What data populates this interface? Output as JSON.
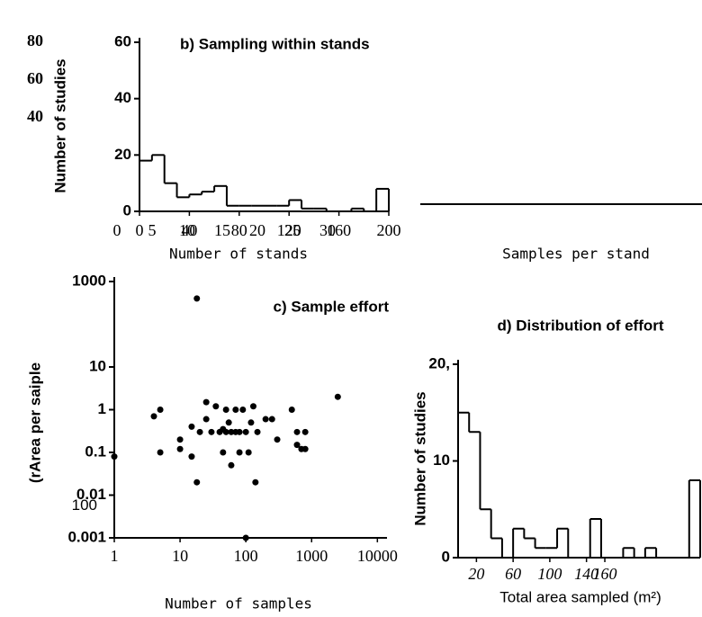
{
  "chart_data": [
    {
      "type": "histogram",
      "title": "b) Sampling within stands",
      "xlabel": "Number of stands",
      "ylabel": "Number of studies",
      "bins": [
        0,
        10,
        20,
        30,
        40,
        50,
        60,
        70,
        80,
        90,
        100,
        110,
        120,
        130,
        140,
        150,
        160,
        170,
        180,
        190,
        200
      ],
      "values": [
        18,
        20,
        10,
        5,
        6,
        7,
        9,
        2,
        2,
        2,
        2,
        2,
        4,
        1,
        1,
        0,
        0,
        1,
        0,
        8
      ],
      "xlim": [
        0,
        200
      ],
      "xticks": [
        0,
        40,
        80,
        120,
        160,
        200
      ],
      "ylim": [
        0,
        60
      ],
      "yticks": [
        0,
        20,
        40,
        60
      ],
      "extra_yticks": [
        80,
        60,
        40
      ],
      "extra_xticks": [
        0,
        5,
        10,
        15,
        20,
        25,
        30
      ],
      "color": "#000000"
    },
    {
      "type": "scatter",
      "title": "c) Sample effort",
      "xlabel": "Number of samples",
      "ylabel": "(rArea per saiple",
      "x": [
        4,
        5,
        5,
        10,
        10,
        15,
        15,
        18,
        20,
        25,
        25,
        30,
        35,
        40,
        45,
        45,
        50,
        50,
        55,
        60,
        60,
        70,
        70,
        80,
        80,
        90,
        100,
        100,
        110,
        120,
        130,
        140,
        150,
        200,
        250,
        300,
        500,
        600,
        600,
        700,
        800,
        800,
        2500,
        1,
        18
      ],
      "y": [
        0.7,
        1,
        0.1,
        0.2,
        0.12,
        0.4,
        0.08,
        0.02,
        0.3,
        1.5,
        0.6,
        0.3,
        1.2,
        0.3,
        0.1,
        0.35,
        1,
        0.3,
        0.5,
        0.3,
        0.05,
        1,
        0.3,
        0.3,
        0.1,
        1,
        0.3,
        0.001,
        0.1,
        0.5,
        1.2,
        0.02,
        0.3,
        0.6,
        0.6,
        0.2,
        1,
        0.15,
        0.3,
        0.12,
        0.3,
        0.12,
        2,
        0.08,
        400
      ],
      "xlim": [
        1,
        14000
      ],
      "ylim": [
        0.001,
        1000
      ],
      "xscale": "log",
      "yscale": "log",
      "xticks": [
        1,
        10,
        100,
        1000,
        10000
      ],
      "yticks": [
        1000,
        10,
        1,
        0.1,
        0.01,
        0.001
      ],
      "extra_yticks": [
        100
      ],
      "color": "#000000"
    },
    {
      "type": "histogram",
      "title": "d) Distribution of effort",
      "xlabel": "Total area sampled (m²)",
      "ylabel": "Number of studies",
      "bins": [
        0,
        12,
        24,
        36,
        48,
        60,
        72,
        84,
        96,
        108,
        120,
        132,
        144,
        156,
        168,
        180,
        192,
        204,
        216,
        228,
        240,
        252,
        264
      ],
      "values": [
        15,
        13,
        5,
        2,
        0,
        3,
        2,
        1,
        1,
        3,
        0,
        0,
        4,
        0,
        0,
        1,
        0,
        1,
        0,
        0,
        0,
        8
      ],
      "xlim": [
        0,
        264
      ],
      "xticks": [
        20,
        60,
        100,
        140,
        160
      ],
      "ylim": [
        0,
        20
      ],
      "yticks": [
        0,
        10,
        {
          "value": 20,
          "label": "20,"
        }
      ],
      "color": "#000000"
    },
    {
      "type": "empty",
      "xlabel": "Samples per stand"
    }
  ]
}
